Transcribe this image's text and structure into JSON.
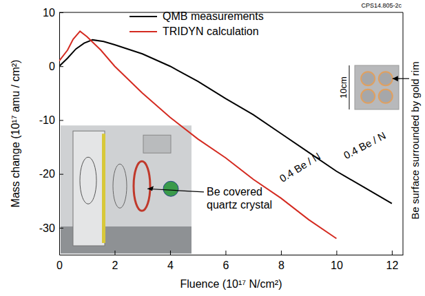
{
  "chart_data": {
    "type": "line",
    "x_label": "Fluence (10¹⁷ N/cm²)",
    "y_label": "Mass change (10¹⁷ amu / cm²)",
    "xlim": [
      0,
      12.4
    ],
    "ylim": [
      -35,
      10
    ],
    "xticks": [
      0,
      2,
      4,
      6,
      8,
      10,
      12
    ],
    "yticks": [
      -30,
      -20,
      -10,
      0,
      10
    ],
    "legend": "top",
    "grid": false,
    "series": [
      {
        "name": "QMB measurements",
        "color": "#000000",
        "x": [
          0,
          0.3,
          0.6,
          0.9,
          1.2,
          1.6,
          2,
          3,
          4,
          5,
          6,
          7,
          8,
          9,
          10,
          11,
          12
        ],
        "values": [
          0,
          1.5,
          3.2,
          4.3,
          4.9,
          4.6,
          4,
          2.3,
          0,
          -2.8,
          -6,
          -9,
          -12.5,
          -16,
          -19.5,
          -22.5,
          -25.5
        ]
      },
      {
        "name": "TRIDYN calculation",
        "color": "#d42a20",
        "x": [
          0,
          0.3,
          0.5,
          0.75,
          1,
          1.5,
          2,
          3,
          4,
          5,
          6,
          7,
          8,
          9,
          10
        ],
        "values": [
          1,
          3,
          5,
          6.5,
          5.5,
          3,
          0,
          -5,
          -9.5,
          -13.5,
          -17,
          -21,
          -24.5,
          -28.5,
          -32
        ]
      }
    ],
    "annotations": [
      "0.4 Be / N",
      "0.4 Be / N",
      "Be covered quartz crystal",
      "Be surface surrounded by gold rim",
      "10cm",
      "CPS14.805-2c"
    ]
  }
}
